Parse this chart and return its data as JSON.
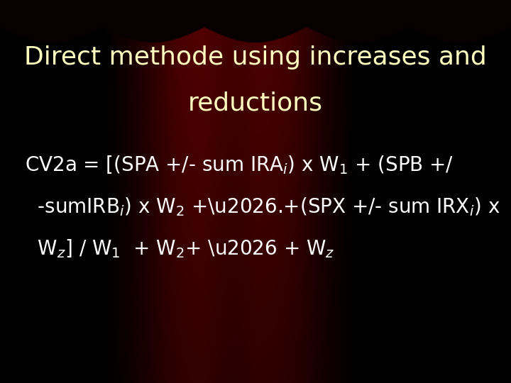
{
  "title_line1": "Direct methode using increases and",
  "title_line2": "reductions",
  "title_color": "#FFFFC0",
  "title_fontsize": 26,
  "body_color": "#FFFFFF",
  "body_fontsize": 20,
  "fig_width": 7.2,
  "fig_height": 5.4,
  "dpi": 100
}
